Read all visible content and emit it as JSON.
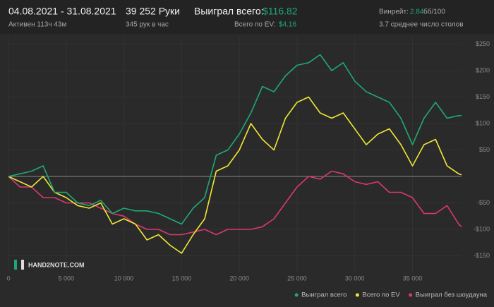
{
  "header": {
    "period": "04.08.2021 - 31.08.2021",
    "active": "Активен 113ч 43м",
    "hands": "39 252 Руки",
    "hands_per_hour": "345 рук в час",
    "won_label": "Выиграл всего:",
    "won_value": "$116.82",
    "ev_label": "Всего по EV:",
    "ev_value": "$4.16",
    "winrate_label": "Винрейт:",
    "winrate_value": "2.84",
    "winrate_unit": "бб/100",
    "tables": "3.7 среднее число столов",
    "logo": "HAND2NOTE.COM"
  },
  "chart_data": {
    "type": "line",
    "x": [
      0,
      1000,
      2000,
      3000,
      4000,
      5000,
      6000,
      7000,
      8000,
      9000,
      10000,
      11000,
      12000,
      13000,
      14000,
      15000,
      16000,
      17000,
      18000,
      19000,
      20000,
      21000,
      22000,
      23000,
      24000,
      25000,
      26000,
      27000,
      28000,
      29000,
      30000,
      31000,
      32000,
      33000,
      34000,
      35000,
      36000,
      37000,
      38000,
      39000,
      39252
    ],
    "series": [
      {
        "name": "Выиграл всего",
        "color": "#1fa874",
        "values": [
          0,
          5,
          10,
          20,
          -30,
          -30,
          -50,
          -55,
          -45,
          -70,
          -60,
          -65,
          -65,
          -70,
          -80,
          -90,
          -60,
          -40,
          40,
          50,
          80,
          120,
          170,
          160,
          190,
          210,
          215,
          230,
          200,
          215,
          180,
          160,
          150,
          140,
          110,
          60,
          110,
          140,
          110,
          115,
          115
        ]
      },
      {
        "name": "Всего по EV",
        "color": "#f0e634",
        "values": [
          0,
          -10,
          -20,
          0,
          -30,
          -40,
          -55,
          -60,
          -50,
          -90,
          -80,
          -90,
          -120,
          -110,
          -130,
          -145,
          -110,
          -80,
          10,
          20,
          50,
          100,
          70,
          50,
          110,
          140,
          150,
          120,
          110,
          120,
          90,
          60,
          80,
          90,
          60,
          20,
          60,
          70,
          20,
          5,
          3
        ]
      },
      {
        "name": "Выиграл без шоудауна",
        "color": "#d9386e",
        "values": [
          0,
          -20,
          -20,
          -40,
          -40,
          -50,
          -50,
          -50,
          -60,
          -70,
          -75,
          -90,
          -100,
          -100,
          -110,
          -110,
          -105,
          -100,
          -110,
          -100,
          -100,
          -100,
          -95,
          -80,
          -50,
          -20,
          0,
          -5,
          10,
          5,
          -10,
          -15,
          -10,
          -30,
          -30,
          -40,
          -70,
          -70,
          -55,
          -90,
          -95
        ]
      }
    ],
    "xlim": [
      0,
      39252
    ],
    "ylim": [
      -180,
      255
    ],
    "xticks": [
      0,
      {
        "value": 5000,
        "label": "5 000"
      },
      {
        "value": 10000,
        "label": "10 000"
      },
      {
        "value": 15000,
        "label": "15 000"
      },
      {
        "value": 20000,
        "label": "20 000"
      },
      {
        "value": 25000,
        "label": "25 000"
      },
      {
        "value": 30000,
        "label": "30 000"
      },
      {
        "value": 35000,
        "label": "35 000"
      }
    ],
    "yticks": [
      {
        "value": 250,
        "label": "$250"
      },
      {
        "value": 200,
        "label": "$200"
      },
      {
        "value": 150,
        "label": "$150"
      },
      {
        "value": 100,
        "label": "$100"
      },
      {
        "value": 50,
        "label": "$50"
      },
      {
        "value": -50,
        "label": "-$50"
      },
      {
        "value": -100,
        "label": "-$100"
      },
      {
        "value": -150,
        "label": "-$150"
      }
    ],
    "grid": true,
    "legend": "bottom-right"
  }
}
